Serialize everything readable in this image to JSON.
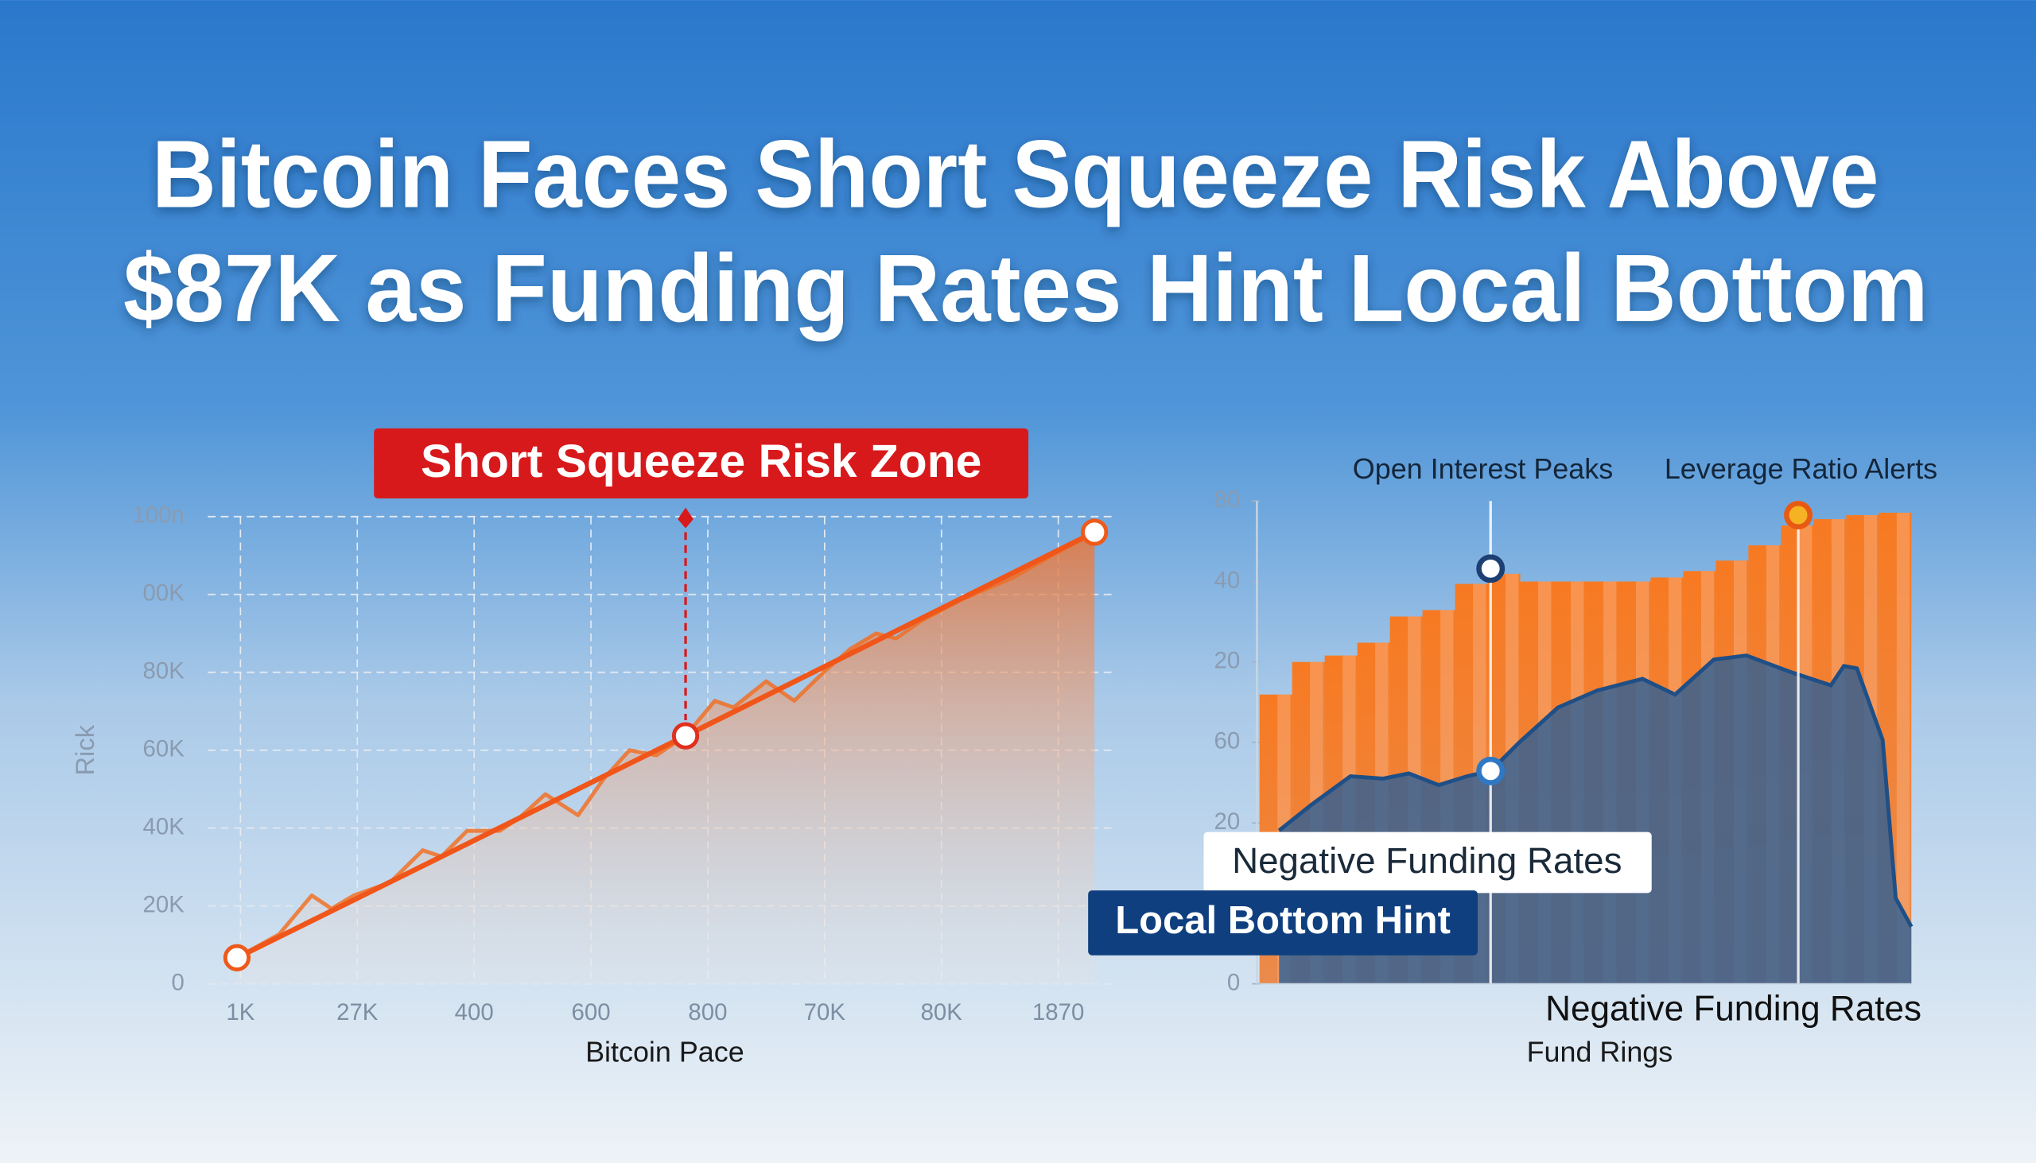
{
  "title": [
    "Bitcoin Faces Short Squeeze Risk Above",
    "$87K as Funding Rates Hint Local Bottom"
  ],
  "chart_data": [
    {
      "type": "line",
      "annotation": "Short Squeeze Risk Zone",
      "x_label": "Bitcoin Pace",
      "y_label": "Rick",
      "grid": true,
      "xlim": [
        -0.28,
        7.5
      ],
      "ylim": [
        0,
        120
      ],
      "xticks": [
        {
          "value": 0,
          "label": "1K"
        },
        {
          "value": 1,
          "label": "27K"
        },
        {
          "value": 2,
          "label": "400"
        },
        {
          "value": 3,
          "label": "600"
        },
        {
          "value": 4,
          "label": "800"
        },
        {
          "value": 5,
          "label": "70K"
        },
        {
          "value": 6,
          "label": "80K"
        },
        {
          "value": 7,
          "label": "1870"
        }
      ],
      "yticks": [
        0,
        {
          "value": 20,
          "label": "20K"
        },
        {
          "value": 40,
          "label": "40K"
        },
        {
          "value": 60,
          "label": "60K"
        },
        {
          "value": 80,
          "label": "80K"
        },
        {
          "value": 100,
          "label": "00K"
        },
        {
          "value": 120,
          "label": "100n"
        }
      ],
      "series": [
        {
          "color": "#f26b1d",
          "x": [
            -0.03,
            0.33,
            0.61,
            0.78,
            0.97,
            1.28,
            1.56,
            1.72,
            1.94,
            2.22,
            2.39,
            2.61,
            2.89,
            3.11,
            3.33,
            3.56,
            3.81,
            4.06,
            4.22,
            4.5,
            4.74,
            5,
            5.22,
            5.44,
            5.61,
            5.83,
            6.17,
            6.61,
            7,
            7.31
          ],
          "values": [
            6.7,
            12.7,
            22.7,
            19.3,
            22.7,
            26,
            34.3,
            32.7,
            39.3,
            39.3,
            42.7,
            48.7,
            43.3,
            52.7,
            60,
            58.7,
            63.7,
            72.7,
            71,
            77.7,
            72.7,
            80.3,
            86,
            90,
            88.7,
            93.3,
            98.7,
            104.3,
            111,
            116
          ]
        },
        {
          "color": "#f0561a",
          "marker_colors": [
            "#ee5a1a",
            "#e0301e",
            "#ee5a1a"
          ],
          "x": [
            -0.03,
            3.81,
            7.31
          ],
          "values": [
            6.7,
            63.7,
            116
          ]
        }
      ]
    },
    {
      "type": "bar",
      "x_label": "Fund Rings",
      "annotations": [
        "Negative Funding Rates",
        "Local Bottom Hint",
        "Negative Funding Rates",
        "Open Interest Peaks",
        "Leverage Ratio Alerts"
      ],
      "xlim": [
        0,
        20
      ],
      "ylim": [
        0,
        120
      ],
      "yticks": [
        0,
        {
          "value": 40,
          "label": "20"
        },
        60,
        {
          "value": 80,
          "label": "20"
        },
        {
          "value": 100,
          "label": "40"
        },
        {
          "value": 120,
          "label": "80"
        }
      ],
      "series": [
        {
          "type": "bar",
          "color": "#f47a28",
          "x": [
            0.5,
            1.5,
            2.5,
            3.5,
            4.5,
            5.5,
            6.5,
            7.5,
            8.5,
            9.5,
            10.5,
            11.5,
            12.5,
            13.5,
            14.5,
            15.5,
            16.5,
            17.5,
            18.5,
            19.5
          ],
          "values": [
            71.9,
            80,
            81.6,
            84.8,
            91.3,
            92.9,
            99.4,
            101.9,
            100,
            100,
            100,
            100,
            101,
            102.6,
            105.2,
            109,
            113.9,
            115.5,
            116.5,
            117.1
          ]
        },
        {
          "type": "area",
          "color": "#275d98",
          "x": [
            0.6,
            1.59,
            2.79,
            3.78,
            4.58,
            5.5,
            6.37,
            7.09,
            7.97,
            9.16,
            10.36,
            11.75,
            12.75,
            13.94,
            14.94,
            16.33,
            17.53,
            17.93,
            18.33,
            19.12,
            19.52,
            20
          ],
          "values": [
            38.1,
            44.5,
            51.6,
            51,
            52.3,
            49.4,
            51.6,
            52.9,
            60,
            68.7,
            72.9,
            75.8,
            71.9,
            80.6,
            81.6,
            77.4,
            74.2,
            79,
            78.4,
            60.6,
            21.3,
            14.2
          ]
        },
        {
          "type": "scatter",
          "colors": [
            "#1d3f73",
            "#2f78c4",
            "#e85a14"
          ],
          "x": [
            7.09,
            7.09,
            16.53
          ],
          "values": [
            103.2,
            52.9,
            116.5
          ]
        }
      ]
    }
  ]
}
